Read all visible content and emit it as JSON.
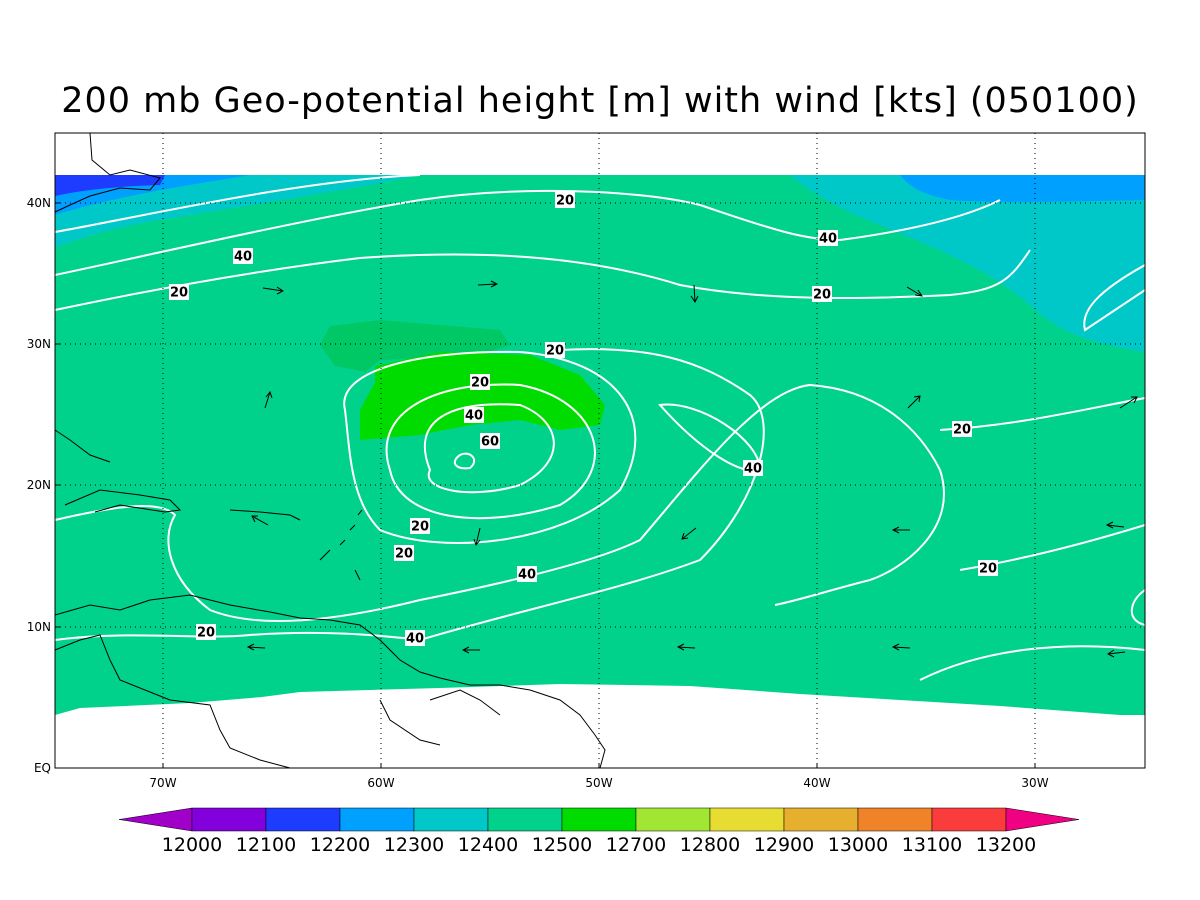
{
  "title": "200 mb Geo-potential height [m] with wind [kts] (050100)",
  "lon_labels": [
    "70W",
    "60W",
    "50W",
    "40W",
    "30W"
  ],
  "lat_labels": [
    "EQ",
    "10N",
    "20N",
    "30N",
    "40N"
  ],
  "contour_labels": [
    20,
    40,
    40,
    20,
    20,
    20,
    20,
    40,
    60,
    40,
    20,
    20,
    40,
    20,
    20,
    20,
    40
  ],
  "colorbar": {
    "colors": [
      "#a000c8",
      "#8200dc",
      "#1e3cff",
      "#00a0ff",
      "#00c8c8",
      "#00d28c",
      "#00dc00",
      "#a0e632",
      "#e6dc32",
      "#e6af2d",
      "#f08228",
      "#fa3c3c",
      "#f00082"
    ],
    "labels": [
      12000,
      12100,
      12200,
      12300,
      12400,
      12500,
      12700,
      12800,
      12900,
      13000,
      13100,
      13200
    ]
  }
}
